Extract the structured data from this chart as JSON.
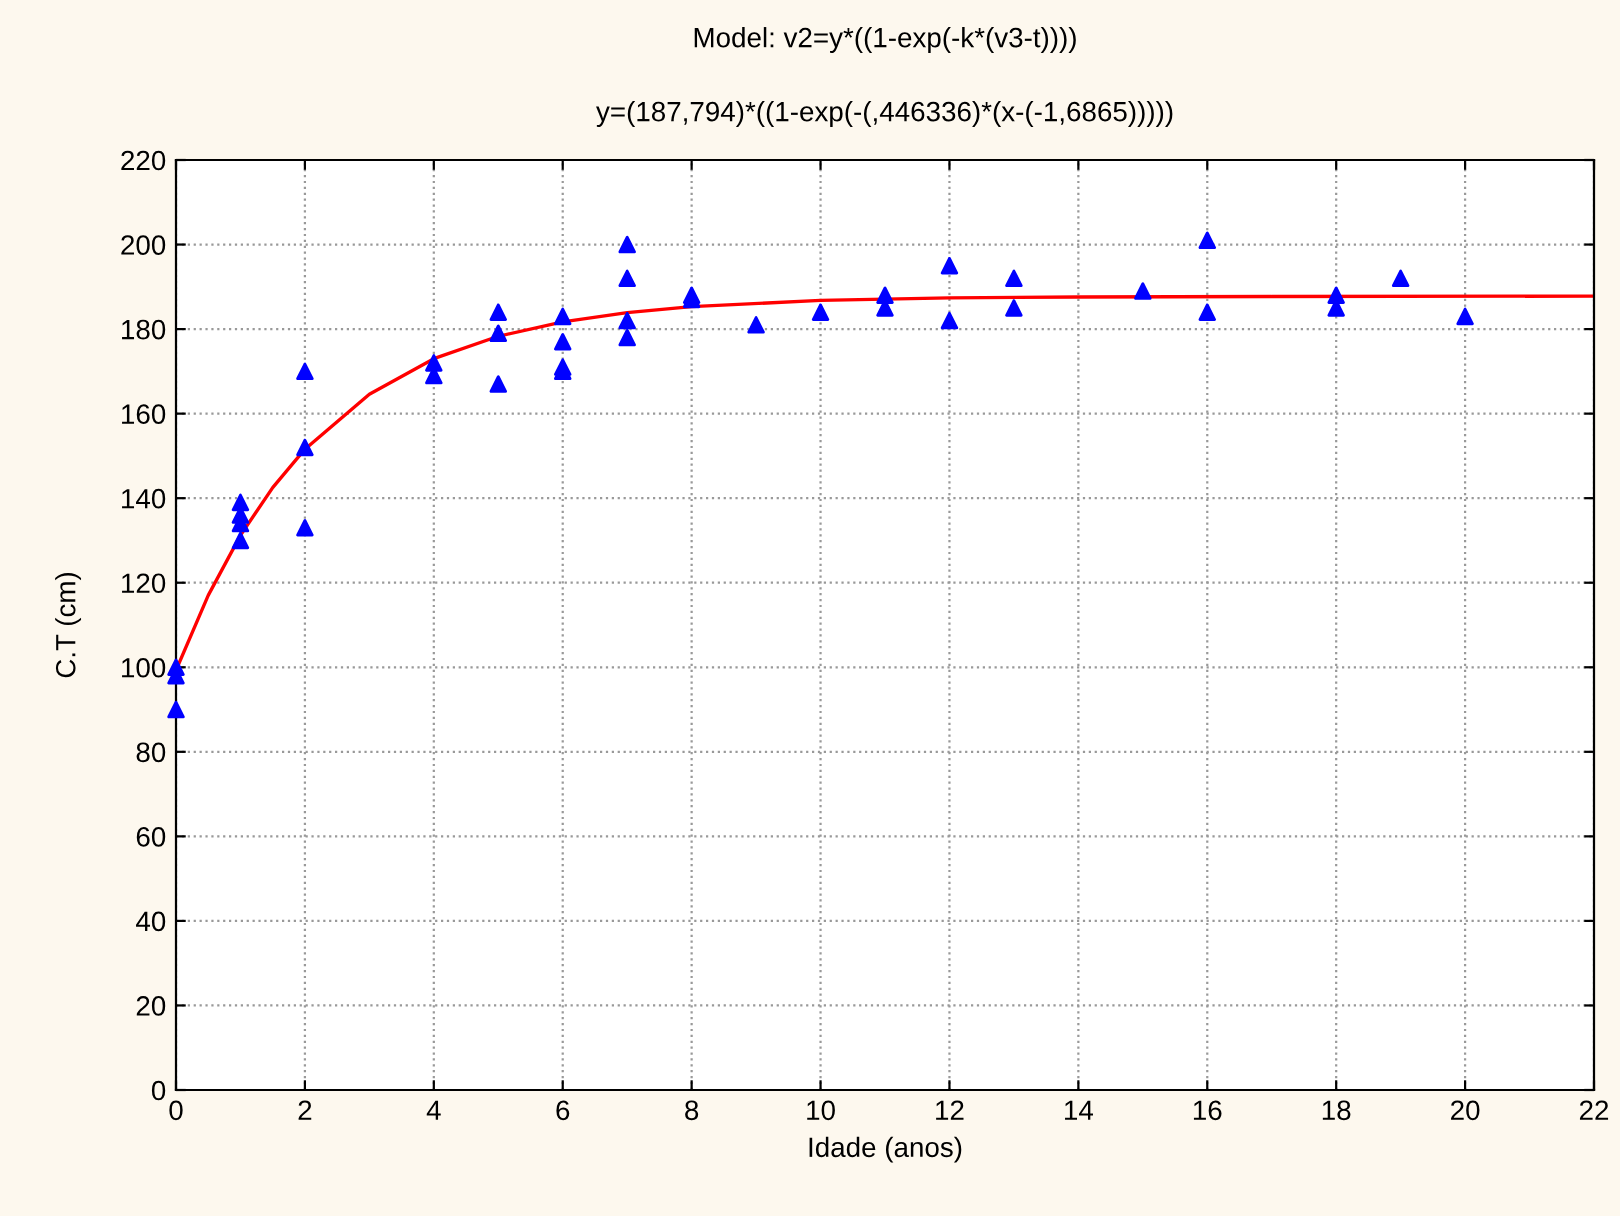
{
  "chart_data": {
    "type": "scatter",
    "title": "Model: v2=y*((1-exp(-k*(v3-t))))",
    "subtitle": "y=(187,794)*((1-exp(-(,446336)*(x-(-1,6865)))))",
    "xlabel": "Idade (anos)",
    "ylabel": "C.T (cm)",
    "series": [
      {
        "color": "#0000ff",
        "marker": "triangle",
        "x": [
          0,
          0,
          0,
          1,
          1,
          1,
          1,
          2,
          2,
          2,
          4,
          4,
          5,
          5,
          5,
          6,
          6,
          6,
          6,
          7,
          7,
          7,
          7,
          8,
          8,
          9,
          10,
          11,
          11,
          12,
          12,
          13,
          13,
          15,
          16,
          16,
          18,
          18,
          19,
          20
        ],
        "values": [
          90,
          98,
          100,
          139,
          136,
          134,
          130,
          170,
          152,
          133,
          172,
          169,
          184,
          179,
          167,
          183,
          177,
          171,
          170,
          200,
          192,
          182,
          178,
          188,
          187,
          181,
          184,
          188,
          185,
          195,
          182,
          192,
          185,
          189,
          201,
          184,
          188,
          185,
          192,
          183
        ]
      },
      {
        "type": "line",
        "color": "#ff0000",
        "marker": "none",
        "x": [
          0,
          0.5,
          1,
          1.5,
          2,
          3,
          4,
          5,
          6,
          7,
          8,
          10,
          12,
          14,
          17,
          22
        ],
        "values": [
          99.3,
          117.0,
          131.2,
          142.5,
          151.6,
          164.6,
          173.0,
          178.3,
          181.7,
          183.9,
          185.3,
          186.8,
          187.4,
          187.6,
          187.7,
          187.8
        ]
      }
    ],
    "xlim": [
      0,
      22
    ],
    "xticks": [
      0,
      2,
      4,
      6,
      8,
      10,
      12,
      14,
      16,
      18,
      20,
      22
    ],
    "ylim": [
      0,
      220
    ],
    "yticks": [
      0,
      20,
      40,
      60,
      80,
      100,
      120,
      140,
      160,
      180,
      200,
      220
    ],
    "grid": true,
    "legend": false
  }
}
